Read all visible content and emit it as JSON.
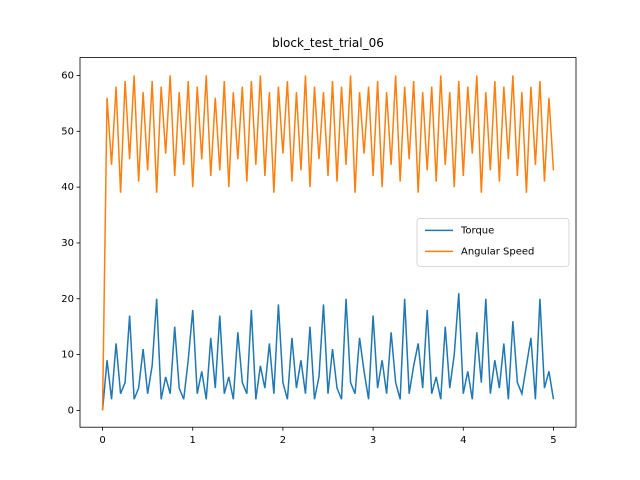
{
  "chart_data": {
    "type": "line",
    "title": "block_test_trial_06",
    "x": [
      0,
      0.05,
      0.1,
      0.15,
      0.2,
      0.25,
      0.3,
      0.35,
      0.4,
      0.45,
      0.5,
      0.55,
      0.6,
      0.65,
      0.7,
      0.75,
      0.8,
      0.85,
      0.9,
      0.95,
      1,
      1.05,
      1.1,
      1.15,
      1.2,
      1.25,
      1.3,
      1.35,
      1.4,
      1.45,
      1.5,
      1.55,
      1.6,
      1.65,
      1.7,
      1.75,
      1.8,
      1.85,
      1.9,
      1.95,
      2,
      2.05,
      2.1,
      2.15,
      2.2,
      2.25,
      2.3,
      2.35,
      2.4,
      2.45,
      2.5,
      2.55,
      2.6,
      2.65,
      2.7,
      2.75,
      2.8,
      2.85,
      2.9,
      2.95,
      3,
      3.05,
      3.1,
      3.15,
      3.2,
      3.25,
      3.3,
      3.35,
      3.4,
      3.45,
      3.5,
      3.55,
      3.6,
      3.65,
      3.7,
      3.75,
      3.8,
      3.85,
      3.9,
      3.95,
      4,
      4.05,
      4.1,
      4.15,
      4.2,
      4.25,
      4.3,
      4.35,
      4.4,
      4.45,
      4.5,
      4.55,
      4.6,
      4.65,
      4.7,
      4.75,
      4.8,
      4.85,
      4.9,
      4.95,
      5
    ],
    "series": [
      {
        "name": "Torque",
        "color": "#1f77b4",
        "values": [
          0,
          9,
          2,
          12,
          3,
          5,
          17,
          2,
          4,
          11,
          3,
          8,
          20,
          2,
          6,
          3,
          15,
          4,
          2,
          9,
          18,
          3,
          7,
          2,
          13,
          4,
          17,
          3,
          6,
          2,
          14,
          5,
          3,
          18,
          2,
          8,
          4,
          12,
          3,
          19,
          5,
          2,
          13,
          4,
          9,
          3,
          15,
          2,
          6,
          19,
          3,
          11,
          4,
          2,
          20,
          5,
          3,
          13,
          7,
          2,
          17,
          4,
          9,
          3,
          14,
          5,
          2,
          20,
          3,
          8,
          12,
          4,
          18,
          3,
          6,
          2,
          15,
          4,
          10,
          21,
          3,
          7,
          2,
          14,
          5,
          20,
          3,
          9,
          4,
          12,
          2,
          16,
          5,
          3,
          8,
          13,
          2,
          20,
          4,
          7,
          2
        ]
      },
      {
        "name": "Angular Speed",
        "color": "#ff7f0e",
        "values": [
          0,
          56,
          44,
          58,
          39,
          59,
          45,
          60,
          41,
          57,
          43,
          59,
          39,
          58,
          46,
          60,
          42,
          57,
          44,
          59,
          40,
          58,
          45,
          60,
          42,
          56,
          43,
          59,
          40,
          57,
          45,
          58,
          41,
          59,
          44,
          60,
          42,
          57,
          39,
          58,
          46,
          59,
          41,
          57,
          43,
          60,
          40,
          58,
          45,
          57,
          42,
          59,
          41,
          58,
          44,
          60,
          39,
          57,
          46,
          58,
          42,
          59,
          40,
          57,
          44,
          60,
          41,
          58,
          45,
          59,
          39,
          57,
          43,
          58,
          41,
          60,
          44,
          57,
          40,
          59,
          42,
          58,
          46,
          60,
          39,
          57,
          43,
          59,
          41,
          58,
          45,
          60,
          42,
          57,
          39,
          58,
          44,
          59,
          41,
          56,
          43
        ]
      }
    ],
    "xlim": [
      -0.25,
      5.25
    ],
    "ylim": [
      -3.0,
      63.2
    ],
    "xticks": [
      0,
      1,
      2,
      3,
      4,
      5
    ],
    "yticks": [
      0,
      10,
      20,
      30,
      40,
      50,
      60
    ],
    "grid": false,
    "legend": "center right"
  }
}
